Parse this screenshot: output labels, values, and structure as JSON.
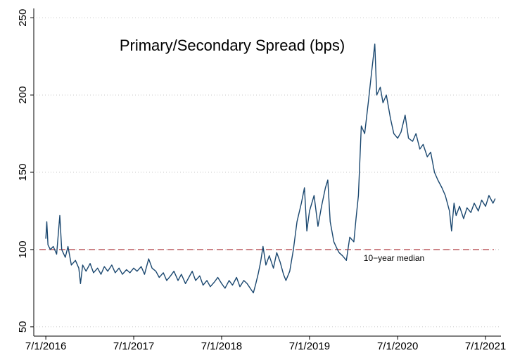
{
  "chart_data": {
    "type": "line",
    "title": "Primary/Secondary Spread (bps)",
    "x": [
      "2016-07-01",
      "2016-07-05",
      "2016-07-10",
      "2016-07-20",
      "2016-08-01",
      "2016-08-15",
      "2016-08-28",
      "2016-09-05",
      "2016-09-20",
      "2016-10-01",
      "2016-10-15",
      "2016-11-01",
      "2016-11-15",
      "2016-11-22",
      "2016-12-01",
      "2016-12-15",
      "2017-01-01",
      "2017-01-15",
      "2017-02-01",
      "2017-02-15",
      "2017-03-01",
      "2017-03-15",
      "2017-04-01",
      "2017-04-15",
      "2017-05-01",
      "2017-05-15",
      "2017-06-01",
      "2017-06-15",
      "2017-07-01",
      "2017-07-15",
      "2017-08-01",
      "2017-08-15",
      "2017-09-01",
      "2017-09-15",
      "2017-10-01",
      "2017-10-15",
      "2017-11-01",
      "2017-11-15",
      "2017-12-01",
      "2017-12-15",
      "2018-01-01",
      "2018-01-15",
      "2018-02-01",
      "2018-02-15",
      "2018-03-01",
      "2018-03-15",
      "2018-04-01",
      "2018-04-15",
      "2018-05-01",
      "2018-05-15",
      "2018-06-01",
      "2018-06-15",
      "2018-07-01",
      "2018-07-15",
      "2018-08-01",
      "2018-08-15",
      "2018-09-01",
      "2018-09-15",
      "2018-10-01",
      "2018-10-15",
      "2018-11-01",
      "2018-11-10",
      "2018-11-20",
      "2018-12-01",
      "2018-12-10",
      "2018-12-20",
      "2019-01-01",
      "2019-01-15",
      "2019-02-01",
      "2019-02-15",
      "2019-03-01",
      "2019-03-15",
      "2019-03-25",
      "2019-04-10",
      "2019-04-25",
      "2019-05-10",
      "2019-05-28",
      "2019-06-10",
      "2019-06-20",
      "2019-07-01",
      "2019-07-20",
      "2019-08-05",
      "2019-08-20",
      "2019-09-05",
      "2019-09-15",
      "2019-09-25",
      "2019-10-10",
      "2019-10-25",
      "2019-11-01",
      "2019-11-15",
      "2019-12-01",
      "2019-12-15",
      "2020-01-01",
      "2020-01-10",
      "2020-01-20",
      "2020-02-01",
      "2020-02-15",
      "2020-03-01",
      "2020-03-15",
      "2020-03-28",
      "2020-04-05",
      "2020-04-20",
      "2020-05-01",
      "2020-05-15",
      "2020-06-01",
      "2020-06-15",
      "2020-07-01",
      "2020-07-15",
      "2020-08-01",
      "2020-08-15",
      "2020-09-01",
      "2020-09-15",
      "2020-10-01",
      "2020-10-15",
      "2020-11-01",
      "2020-11-15",
      "2020-12-01",
      "2020-12-15",
      "2021-01-01",
      "2021-01-15",
      "2021-02-01",
      "2021-02-10",
      "2021-02-20",
      "2021-03-01",
      "2021-03-15",
      "2021-04-01",
      "2021-04-15",
      "2021-05-01",
      "2021-05-15",
      "2021-06-01",
      "2021-06-15",
      "2021-07-01",
      "2021-07-15",
      "2021-08-01",
      "2021-08-10"
    ],
    "series": [
      {
        "color": "#1a476f",
        "values": [
          107,
          118,
          103,
          100,
          102,
          97,
          122,
          100,
          95,
          102,
          90,
          93,
          88,
          78,
          90,
          86,
          91,
          85,
          88,
          84,
          89,
          86,
          90,
          85,
          88,
          84,
          87,
          85,
          88,
          86,
          89,
          84,
          94,
          88,
          86,
          82,
          85,
          80,
          83,
          86,
          80,
          84,
          78,
          82,
          86,
          80,
          83,
          77,
          80,
          76,
          79,
          82,
          78,
          75,
          80,
          77,
          82,
          76,
          80,
          78,
          74,
          72,
          78,
          85,
          92,
          102,
          90,
          96,
          88,
          98,
          92,
          84,
          80,
          86,
          100,
          118,
          130,
          140,
          112,
          125,
          135,
          115,
          128,
          140,
          145,
          118,
          105,
          100,
          98,
          96,
          93,
          108,
          105,
          120,
          135,
          180,
          175,
          195,
          215,
          233,
          200,
          205,
          195,
          200,
          185,
          175,
          172,
          176,
          187,
          172,
          170,
          175,
          165,
          168,
          160,
          163,
          150,
          145,
          140,
          135,
          125,
          112,
          130,
          122,
          128,
          120,
          127,
          124,
          130,
          125,
          132,
          128,
          135,
          130,
          133
        ]
      }
    ],
    "xlim": [
      "2016-05-12",
      "2021-09-03"
    ],
    "xticks": [
      {
        "value": "2016-07-01",
        "label": "7/1/2016"
      },
      {
        "value": "2017-07-01",
        "label": "7/1/2017"
      },
      {
        "value": "2018-07-01",
        "label": "7/1/2018"
      },
      {
        "value": "2019-07-01",
        "label": "7/1/2019"
      },
      {
        "value": "2020-07-01",
        "label": "7/1/2020"
      },
      {
        "value": "2021-07-01",
        "label": "7/1/2021"
      }
    ],
    "ylim": [
      44,
      256
    ],
    "yticks": [
      50,
      100,
      150,
      200,
      250
    ],
    "grid": true,
    "hline": {
      "value": 100,
      "label": "10−year median",
      "color": "#b5484e"
    }
  }
}
